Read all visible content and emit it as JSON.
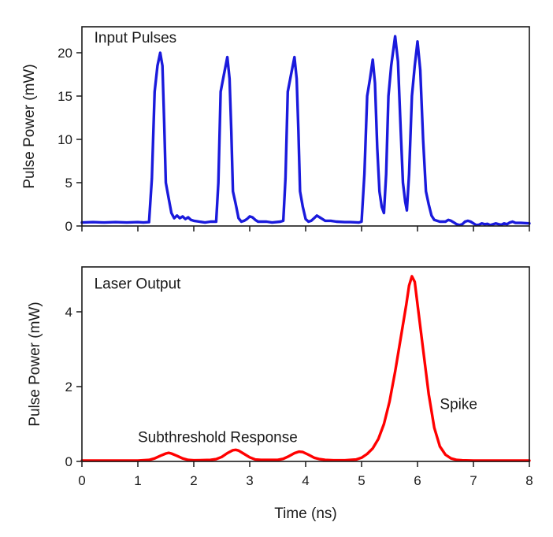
{
  "chart_data": [
    {
      "type": "line",
      "ylabel": "Pulse Power (mW)",
      "xlabel": "",
      "xlim": [
        0,
        8
      ],
      "ylim": [
        0,
        23
      ],
      "xticks": [
        0,
        1,
        2,
        3,
        4,
        5,
        6,
        7,
        8
      ],
      "show_xtick_labels": false,
      "yticks": [
        0,
        5,
        10,
        15,
        20
      ],
      "ytick_labels": [
        "0",
        "5",
        "10",
        "15",
        "20"
      ],
      "grid": false,
      "annotations": [
        {
          "text": "Input Pulses",
          "x": 0.22,
          "y": 21.2
        }
      ],
      "series": [
        {
          "color": "#1a1adc",
          "points": [
            [
              0.0,
              0.4
            ],
            [
              0.2,
              0.45
            ],
            [
              0.4,
              0.4
            ],
            [
              0.6,
              0.45
            ],
            [
              0.8,
              0.4
            ],
            [
              1.0,
              0.45
            ],
            [
              1.1,
              0.4
            ],
            [
              1.2,
              0.45
            ],
            [
              1.25,
              5.5
            ],
            [
              1.3,
              15.5
            ],
            [
              1.35,
              18.5
            ],
            [
              1.4,
              20.0
            ],
            [
              1.44,
              18.5
            ],
            [
              1.47,
              12.0
            ],
            [
              1.5,
              5.0
            ],
            [
              1.55,
              3.2
            ],
            [
              1.6,
              1.5
            ],
            [
              1.65,
              0.9
            ],
            [
              1.7,
              1.2
            ],
            [
              1.75,
              0.9
            ],
            [
              1.8,
              1.1
            ],
            [
              1.85,
              0.8
            ],
            [
              1.9,
              1.0
            ],
            [
              1.95,
              0.7
            ],
            [
              2.0,
              0.6
            ],
            [
              2.1,
              0.5
            ],
            [
              2.2,
              0.4
            ],
            [
              2.3,
              0.5
            ],
            [
              2.4,
              0.5
            ],
            [
              2.44,
              5.0
            ],
            [
              2.48,
              15.5
            ],
            [
              2.54,
              17.5
            ],
            [
              2.6,
              19.5
            ],
            [
              2.64,
              17.0
            ],
            [
              2.67,
              11.0
            ],
            [
              2.7,
              4.0
            ],
            [
              2.75,
              2.5
            ],
            [
              2.8,
              0.9
            ],
            [
              2.85,
              0.5
            ],
            [
              2.9,
              0.6
            ],
            [
              2.95,
              0.8
            ],
            [
              3.0,
              1.1
            ],
            [
              3.05,
              1.0
            ],
            [
              3.1,
              0.7
            ],
            [
              3.15,
              0.5
            ],
            [
              3.3,
              0.5
            ],
            [
              3.4,
              0.4
            ],
            [
              3.55,
              0.5
            ],
            [
              3.6,
              0.6
            ],
            [
              3.64,
              5.5
            ],
            [
              3.68,
              15.5
            ],
            [
              3.74,
              17.5
            ],
            [
              3.8,
              19.5
            ],
            [
              3.84,
              17.0
            ],
            [
              3.87,
              11.0
            ],
            [
              3.9,
              4.0
            ],
            [
              3.95,
              2.2
            ],
            [
              4.0,
              0.8
            ],
            [
              4.05,
              0.5
            ],
            [
              4.1,
              0.6
            ],
            [
              4.15,
              0.9
            ],
            [
              4.2,
              1.2
            ],
            [
              4.25,
              1.0
            ],
            [
              4.3,
              0.8
            ],
            [
              4.35,
              0.6
            ],
            [
              4.45,
              0.6
            ],
            [
              4.55,
              0.5
            ],
            [
              4.7,
              0.45
            ],
            [
              4.8,
              0.45
            ],
            [
              4.95,
              0.4
            ],
            [
              5.0,
              0.5
            ],
            [
              5.05,
              6.0
            ],
            [
              5.1,
              15.0
            ],
            [
              5.15,
              17.0
            ],
            [
              5.2,
              19.2
            ],
            [
              5.24,
              16.5
            ],
            [
              5.28,
              9.0
            ],
            [
              5.32,
              4.0
            ],
            [
              5.36,
              2.2
            ],
            [
              5.4,
              1.5
            ],
            [
              5.44,
              6.0
            ],
            [
              5.48,
              15.0
            ],
            [
              5.53,
              18.5
            ],
            [
              5.6,
              21.9
            ],
            [
              5.65,
              19.0
            ],
            [
              5.7,
              11.0
            ],
            [
              5.74,
              5.0
            ],
            [
              5.78,
              2.8
            ],
            [
              5.81,
              1.8
            ],
            [
              5.85,
              6.0
            ],
            [
              5.9,
              15.0
            ],
            [
              5.95,
              18.5
            ],
            [
              6.0,
              21.3
            ],
            [
              6.05,
              18.0
            ],
            [
              6.1,
              10.0
            ],
            [
              6.15,
              4.0
            ],
            [
              6.2,
              2.5
            ],
            [
              6.25,
              1.2
            ],
            [
              6.3,
              0.7
            ],
            [
              6.4,
              0.5
            ],
            [
              6.5,
              0.5
            ],
            [
              6.55,
              0.7
            ],
            [
              6.6,
              0.6
            ],
            [
              6.65,
              0.4
            ],
            [
              6.7,
              0.2
            ],
            [
              6.75,
              0.1
            ],
            [
              6.8,
              0.2
            ],
            [
              6.85,
              0.5
            ],
            [
              6.9,
              0.6
            ],
            [
              6.95,
              0.5
            ],
            [
              7.0,
              0.3
            ],
            [
              7.05,
              0.1
            ],
            [
              7.1,
              0.15
            ],
            [
              7.15,
              0.3
            ],
            [
              7.2,
              0.2
            ],
            [
              7.25,
              0.25
            ],
            [
              7.3,
              0.1
            ],
            [
              7.4,
              0.3
            ],
            [
              7.45,
              0.2
            ],
            [
              7.5,
              0.15
            ],
            [
              7.55,
              0.3
            ],
            [
              7.6,
              0.2
            ],
            [
              7.65,
              0.4
            ],
            [
              7.7,
              0.5
            ],
            [
              7.75,
              0.35
            ],
            [
              7.85,
              0.35
            ],
            [
              8.0,
              0.3
            ]
          ]
        }
      ]
    },
    {
      "type": "line",
      "ylabel": "Pulse Power (mW)",
      "xlabel": "Time (ns)",
      "xlim": [
        0,
        8
      ],
      "ylim": [
        0,
        5.2
      ],
      "xticks": [
        0,
        1,
        2,
        3,
        4,
        5,
        6,
        7,
        8
      ],
      "xtick_labels": [
        "0",
        "1",
        "2",
        "3",
        "4",
        "5",
        "6",
        "7",
        "8"
      ],
      "show_xtick_labels": true,
      "yticks": [
        0,
        2,
        4
      ],
      "ytick_labels": [
        "0",
        "2",
        "4"
      ],
      "grid": false,
      "annotations": [
        {
          "text": "Laser Output",
          "x": 0.22,
          "y": 4.62
        },
        {
          "text": "Subthreshold Response",
          "x": 1.0,
          "y": 0.52
        },
        {
          "text": "Spike",
          "x": 6.4,
          "y": 1.4
        }
      ],
      "series": [
        {
          "color": "#ff0000",
          "points": [
            [
              0.0,
              0.02
            ],
            [
              0.5,
              0.02
            ],
            [
              1.0,
              0.02
            ],
            [
              1.2,
              0.04
            ],
            [
              1.3,
              0.08
            ],
            [
              1.4,
              0.15
            ],
            [
              1.5,
              0.21
            ],
            [
              1.55,
              0.23
            ],
            [
              1.6,
              0.21
            ],
            [
              1.7,
              0.15
            ],
            [
              1.8,
              0.08
            ],
            [
              1.9,
              0.04
            ],
            [
              2.0,
              0.03
            ],
            [
              2.3,
              0.04
            ],
            [
              2.4,
              0.06
            ],
            [
              2.5,
              0.12
            ],
            [
              2.6,
              0.22
            ],
            [
              2.7,
              0.3
            ],
            [
              2.75,
              0.31
            ],
            [
              2.8,
              0.29
            ],
            [
              2.9,
              0.2
            ],
            [
              3.0,
              0.11
            ],
            [
              3.1,
              0.05
            ],
            [
              3.2,
              0.04
            ],
            [
              3.5,
              0.04
            ],
            [
              3.6,
              0.07
            ],
            [
              3.7,
              0.14
            ],
            [
              3.8,
              0.22
            ],
            [
              3.88,
              0.26
            ],
            [
              3.95,
              0.25
            ],
            [
              4.05,
              0.18
            ],
            [
              4.15,
              0.1
            ],
            [
              4.25,
              0.06
            ],
            [
              4.35,
              0.04
            ],
            [
              4.5,
              0.03
            ],
            [
              4.7,
              0.03
            ],
            [
              4.8,
              0.04
            ],
            [
              4.9,
              0.05
            ],
            [
              5.0,
              0.1
            ],
            [
              5.1,
              0.2
            ],
            [
              5.2,
              0.35
            ],
            [
              5.3,
              0.6
            ],
            [
              5.4,
              1.0
            ],
            [
              5.5,
              1.6
            ],
            [
              5.6,
              2.4
            ],
            [
              5.7,
              3.3
            ],
            [
              5.8,
              4.2
            ],
            [
              5.85,
              4.7
            ],
            [
              5.9,
              4.95
            ],
            [
              5.95,
              4.8
            ],
            [
              6.0,
              4.2
            ],
            [
              6.1,
              3.0
            ],
            [
              6.2,
              1.8
            ],
            [
              6.3,
              0.9
            ],
            [
              6.4,
              0.4
            ],
            [
              6.5,
              0.18
            ],
            [
              6.6,
              0.08
            ],
            [
              6.7,
              0.04
            ],
            [
              6.8,
              0.03
            ],
            [
              7.0,
              0.02
            ],
            [
              7.5,
              0.02
            ],
            [
              8.0,
              0.02
            ]
          ]
        }
      ]
    }
  ]
}
